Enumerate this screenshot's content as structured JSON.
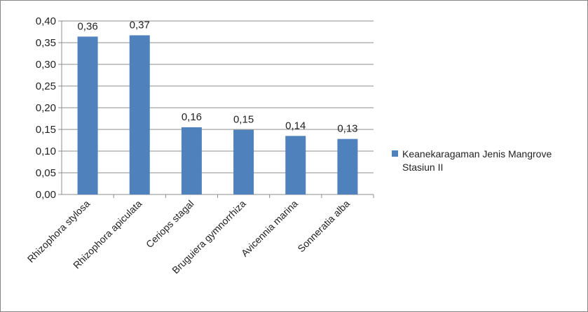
{
  "chart_data": {
    "type": "bar",
    "title": "",
    "xlabel": "",
    "ylabel": "",
    "ylim": [
      0,
      0.4
    ],
    "y_ticks": [
      "0,00",
      "0,05",
      "0,10",
      "0,15",
      "0,20",
      "0,25",
      "0,30",
      "0,35",
      "0,40"
    ],
    "grid": true,
    "legend_position": "right",
    "categories": [
      "Rhizophora stylosa",
      "Rhizophora apiculata",
      "Ceriops stagal",
      "Bruguiera  gymnorrhiza",
      "Avicennia marina",
      "Sonneratia alba"
    ],
    "series": [
      {
        "name": "Keanekaragaman Jenis Mangrove Stasiun II",
        "values": [
          0.364,
          0.367,
          0.155,
          0.149,
          0.135,
          0.128
        ],
        "data_labels": [
          "0,36",
          "0,37",
          "0,16",
          "0,15",
          "0,14",
          "0,13"
        ],
        "color": "#4f81bd"
      }
    ],
    "legend_lines": [
      "Keanekaragaman Jenis Mangrove",
      "Stasiun II"
    ]
  }
}
